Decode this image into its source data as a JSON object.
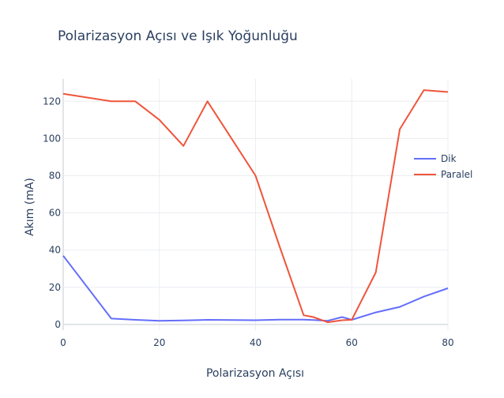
{
  "chart_data": {
    "type": "line",
    "title": "Polarizasyon Açısı ve Işık Yoğunluğu",
    "xlabel": "Polarizasyon Açısı",
    "ylabel": "Akım (mA)",
    "xlim": [
      0,
      80
    ],
    "ylim": [
      -3,
      132
    ],
    "xticks": [
      0,
      20,
      40,
      60,
      80
    ],
    "yticks": [
      0,
      20,
      40,
      60,
      80,
      100,
      120
    ],
    "grid": true,
    "legend_position": "right",
    "series": [
      {
        "name": "Dik",
        "color": "#636efa",
        "x": [
          0,
          10,
          15,
          20,
          25,
          30,
          35,
          40,
          45,
          50,
          52,
          55,
          58,
          60,
          65,
          70,
          75,
          80
        ],
        "y": [
          37,
          3.2,
          2.5,
          2,
          2.2,
          2.5,
          2.4,
          2.3,
          2.6,
          2.6,
          2.4,
          2,
          4,
          2.5,
          6.5,
          9.5,
          15,
          19.5
        ]
      },
      {
        "name": "Paralel",
        "color": "#ef553b",
        "x": [
          0,
          10,
          15,
          20,
          25,
          30,
          35,
          40,
          45,
          50,
          52,
          55,
          58,
          60,
          65,
          70,
          75,
          80
        ],
        "y": [
          124,
          120,
          120,
          110,
          96,
          120,
          100,
          80,
          42,
          5,
          4,
          1.2,
          2.3,
          2.5,
          28,
          105,
          126,
          125
        ]
      }
    ]
  }
}
